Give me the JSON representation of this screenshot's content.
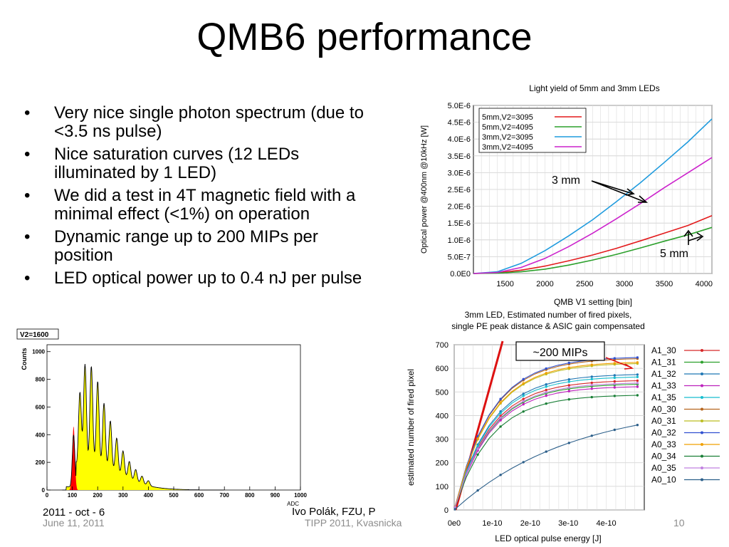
{
  "slide": {
    "title": "QMB6 performance",
    "bullets": [
      "Very nice single photon spectrum (due to <3.5 ns pulse)",
      "Nice saturation curves (12 LEDs illuminated by 1 LED)",
      "We did a test in 4T magnetic field with a minimal effect (<1%) on operation",
      "Dynamic range up to 200 MIPs per position",
      "LED optical power up to 0.4 nJ per pulse"
    ],
    "footer": {
      "date": "June 11, 2011",
      "conference": "TIPP 2011, Kvasnicka",
      "page": "10",
      "underlay_date": "2011 - oct - 6",
      "underlay_author": "Ivo Polák, FZU, P"
    }
  },
  "chart_data": [
    {
      "type": "line",
      "title": "Light yield of 5mm and 3mm LEDs",
      "xlabel": "QMB V1 setting [bin]",
      "ylabel": "Optical power @400nm @10kHz [W]",
      "xlim": [
        1100,
        4100
      ],
      "ylim": [
        0,
        5e-06
      ],
      "xticks": [
        "1500",
        "2000",
        "2500",
        "3000",
        "3500",
        "4000"
      ],
      "yticks": [
        "0.0E0",
        "5.0E-7",
        "1.0E-6",
        "1.5E-6",
        "2.0E-6",
        "2.5E-6",
        "3.0E-6",
        "3.5E-6",
        "4.0E-6",
        "4.5E-6",
        "5.0E-6"
      ],
      "legend_position": "top-left",
      "series": [
        {
          "name": "5mm,V2=3095",
          "color": "#e31a1c",
          "x": [
            1100,
            1400,
            1700,
            2000,
            2300,
            2600,
            2900,
            3200,
            3500,
            3800,
            4100
          ],
          "y": [
            0,
            2e-08,
            1e-07,
            2.2e-07,
            3.8e-07,
            5.5e-07,
            7.5e-07,
            9.7e-07,
            1.2e-06,
            1.43e-06,
            1.72e-06
          ]
        },
        {
          "name": "5mm,V2=4095",
          "color": "#2ca02c",
          "x": [
            1100,
            1400,
            1700,
            2000,
            2300,
            2600,
            2900,
            3200,
            3500,
            3800,
            4100
          ],
          "y": [
            0,
            1e-08,
            5e-08,
            1.3e-07,
            2.5e-07,
            4e-07,
            5.7e-07,
            7.6e-07,
            9.6e-07,
            1.15e-06,
            1.37e-06
          ]
        },
        {
          "name": "3mm,V2=3095",
          "color": "#1f9bde",
          "x": [
            1100,
            1400,
            1700,
            2000,
            2300,
            2600,
            2900,
            3200,
            3500,
            3800,
            4100
          ],
          "y": [
            0,
            5e-08,
            3e-07,
            6.8e-07,
            1.12e-06,
            1.6e-06,
            2.14e-06,
            2.7e-06,
            3.3e-06,
            3.92e-06,
            4.6e-06
          ]
        },
        {
          "name": "3mm,V2=4095",
          "color": "#cc22cc",
          "x": [
            1100,
            1400,
            1700,
            2000,
            2300,
            2600,
            2900,
            3200,
            3500,
            3800,
            4100
          ],
          "y": [
            0,
            3e-08,
            1.8e-07,
            4.5e-07,
            8e-07,
            1.2e-06,
            1.63e-06,
            2.08e-06,
            2.55e-06,
            3e-06,
            3.45e-06
          ]
        }
      ],
      "annotations": [
        "3 mm",
        "5 mm"
      ]
    },
    {
      "type": "line",
      "title": "3mm LED, Estimated number of fired pixels,",
      "subtitle": "single PE peak distance & ASIC gain compensated",
      "xlabel": "LED optical pulse energy [J]",
      "ylabel": "estimated number of fired pixel",
      "xlim": [
        0,
        5e-10
      ],
      "ylim": [
        0,
        700
      ],
      "xticks": [
        "0e0",
        "1e-10",
        "2e-10",
        "3e-10",
        "4e-10"
      ],
      "yticks": [
        "0",
        "100",
        "200",
        "300",
        "400",
        "500",
        "600",
        "700"
      ],
      "legend_position": "outside-right",
      "annotations": [
        "~200 MIPs"
      ],
      "series": [
        {
          "name": "A1_30",
          "color": "#d62728",
          "ymax": 530
        },
        {
          "name": "A1_31",
          "color": "#2ca02c",
          "ymax": 515
        },
        {
          "name": "A1_32",
          "color": "#1f77b4",
          "ymax": 555
        },
        {
          "name": "A1_33",
          "color": "#bd22bd",
          "ymax": 505
        },
        {
          "name": "A1_35",
          "color": "#17becf",
          "ymax": 545
        },
        {
          "name": "A0_30",
          "color": "#b5651d",
          "ymax": 620
        },
        {
          "name": "A0_31",
          "color": "#bcbd22",
          "ymax": 600
        },
        {
          "name": "A0_32",
          "color": "#3050d0",
          "ymax": 625
        },
        {
          "name": "A0_33",
          "color": "#f0a000",
          "ymax": 605
        },
        {
          "name": "A0_34",
          "color": "#1a7f37",
          "ymax": 470
        },
        {
          "name": "A0_35",
          "color": "#c080e0",
          "ymax": 520
        },
        {
          "name": "A0_10",
          "color": "#2c5f8a",
          "ymax": 365
        }
      ]
    },
    {
      "type": "area",
      "title": "",
      "legend_label": "V2=1600",
      "xlabel": "ADC",
      "ylabel": "Counts",
      "xlim": [
        0,
        1000
      ],
      "ylim": [
        0,
        1050
      ],
      "xticks": [
        "0",
        "100",
        "200",
        "300",
        "400",
        "500",
        "600",
        "700",
        "800",
        "900",
        "1000"
      ],
      "yticks": [
        "0",
        "200",
        "400",
        "600",
        "800",
        "1000"
      ],
      "peaks": [
        {
          "x": 105,
          "y": 460,
          "fill": "#ff0000"
        },
        {
          "x": 130,
          "y": 680
        },
        {
          "x": 150,
          "y": 920
        },
        {
          "x": 175,
          "y": 900
        },
        {
          "x": 200,
          "y": 770
        },
        {
          "x": 225,
          "y": 590
        },
        {
          "x": 250,
          "y": 450
        },
        {
          "x": 275,
          "y": 320
        },
        {
          "x": 300,
          "y": 230
        },
        {
          "x": 325,
          "y": 160
        },
        {
          "x": 350,
          "y": 110
        },
        {
          "x": 375,
          "y": 70
        },
        {
          "x": 400,
          "y": 45
        }
      ]
    }
  ]
}
